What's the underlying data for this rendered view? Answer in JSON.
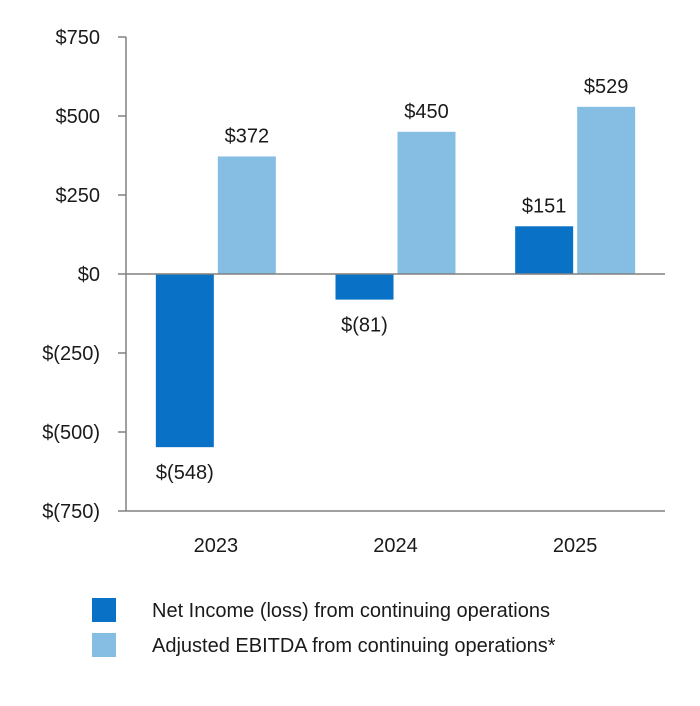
{
  "chart_data": {
    "type": "bar",
    "title": "",
    "xlabel": "",
    "ylabel": "",
    "categories": [
      "2023",
      "2024",
      "2025"
    ],
    "ylim": [
      -750,
      750
    ],
    "yticks": [
      750,
      500,
      250,
      0,
      -250,
      -500,
      -750
    ],
    "ytick_labels": [
      "$750",
      "$500",
      "$250",
      "$0",
      "$(250)",
      "$(500)",
      "$(750)"
    ],
    "grid": false,
    "legend_position": "bottom",
    "series": [
      {
        "name": "Net Income (loss) from continuing operations",
        "color": "#0a72c6",
        "values": [
          -548,
          -81,
          151
        ],
        "labels": [
          "$(548)",
          "$(81)",
          "$151"
        ]
      },
      {
        "name": "Adjusted EBITDA from continuing operations*",
        "color": "#85bde3",
        "values": [
          372,
          450,
          529
        ],
        "labels": [
          "$372",
          "$450",
          "$529"
        ]
      }
    ]
  }
}
